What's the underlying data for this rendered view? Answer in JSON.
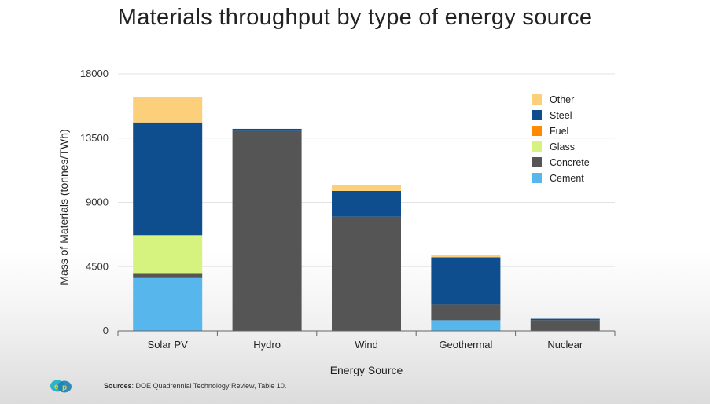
{
  "title": "Materials throughput by type of energy source",
  "colors": {
    "Other": "#fcd07a",
    "Steel": "#0e4e8e",
    "Fuel": "#ff8a00",
    "Glass": "#d6f27f",
    "Concrete": "#555555",
    "Cement": "#57b6ec",
    "grid": "#e3e3e3",
    "axis": "#666666"
  },
  "chart_data": {
    "type": "bar",
    "stacked": true,
    "title": "Materials throughput by type of energy source",
    "xlabel": "Energy Source",
    "ylabel": "Mass of Materials (tonnes/TWh)",
    "ylim": [
      0,
      18000
    ],
    "yticks": [
      0,
      4500,
      9000,
      13500,
      18000
    ],
    "grid": true,
    "legend_position": "top-right",
    "categories": [
      "Solar PV",
      "Hydro",
      "Wind",
      "Geothermal",
      "Nuclear"
    ],
    "series": [
      {
        "name": "Cement",
        "values": [
          3700,
          0,
          0,
          750,
          0
        ]
      },
      {
        "name": "Concrete",
        "values": [
          350,
          14000,
          8000,
          1100,
          760
        ]
      },
      {
        "name": "Glass",
        "values": [
          2650,
          0,
          0,
          0,
          0
        ]
      },
      {
        "name": "Fuel",
        "values": [
          0,
          0,
          0,
          0,
          0
        ]
      },
      {
        "name": "Steel",
        "values": [
          7900,
          150,
          1800,
          3300,
          90
        ]
      },
      {
        "name": "Other",
        "values": [
          1800,
          0,
          400,
          150,
          0
        ]
      }
    ],
    "legend_order": [
      "Other",
      "Steel",
      "Fuel",
      "Glass",
      "Concrete",
      "Cement"
    ]
  },
  "footer": {
    "sources_label": "Sources",
    "sources_text": ": DOE Quadrennial Technology Review, Table 10."
  }
}
